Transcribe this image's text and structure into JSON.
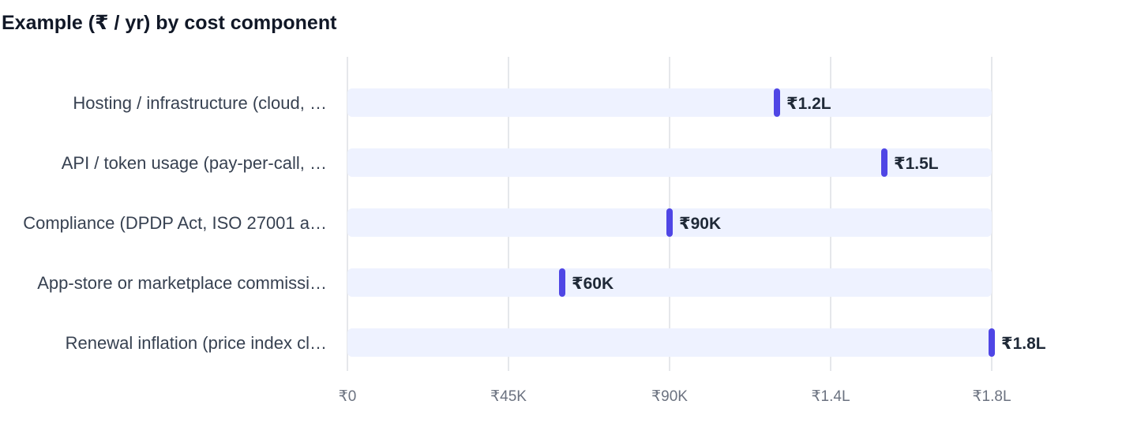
{
  "chart_data": {
    "type": "bar",
    "title": "Example (₹ / yr) by cost component",
    "categories": [
      "Hosting / infrastructure (cloud, …",
      "API / token usage (pay-per-call, …",
      "Compliance (DPDP Act, ISO 27001 a…",
      "App-store or marketplace commissi…",
      "Renewal inflation (price index cl…"
    ],
    "series": [
      {
        "values": [
          120000,
          150000,
          90000,
          60000,
          180000
        ],
        "value_labels": [
          "₹1.2L",
          "₹1.5L",
          "₹90K",
          "₹60K",
          "₹1.8L"
        ]
      }
    ],
    "xlim": [
      0,
      180000
    ],
    "x_ticks": [
      0,
      45000,
      90000,
      135000,
      180000
    ],
    "x_tick_labels": [
      "₹0",
      "₹45K",
      "₹90K",
      "₹1.4L",
      "₹1.8L"
    ],
    "xlabel": "",
    "ylabel": "",
    "grid": true,
    "orientation": "horizontal",
    "colors": {
      "marker": "#4f46e5",
      "track": "#eef2ff",
      "grid": "#e5e7eb",
      "category_text": "#374151",
      "tick_text": "#6b7280",
      "value_text": "#1f2937"
    }
  }
}
